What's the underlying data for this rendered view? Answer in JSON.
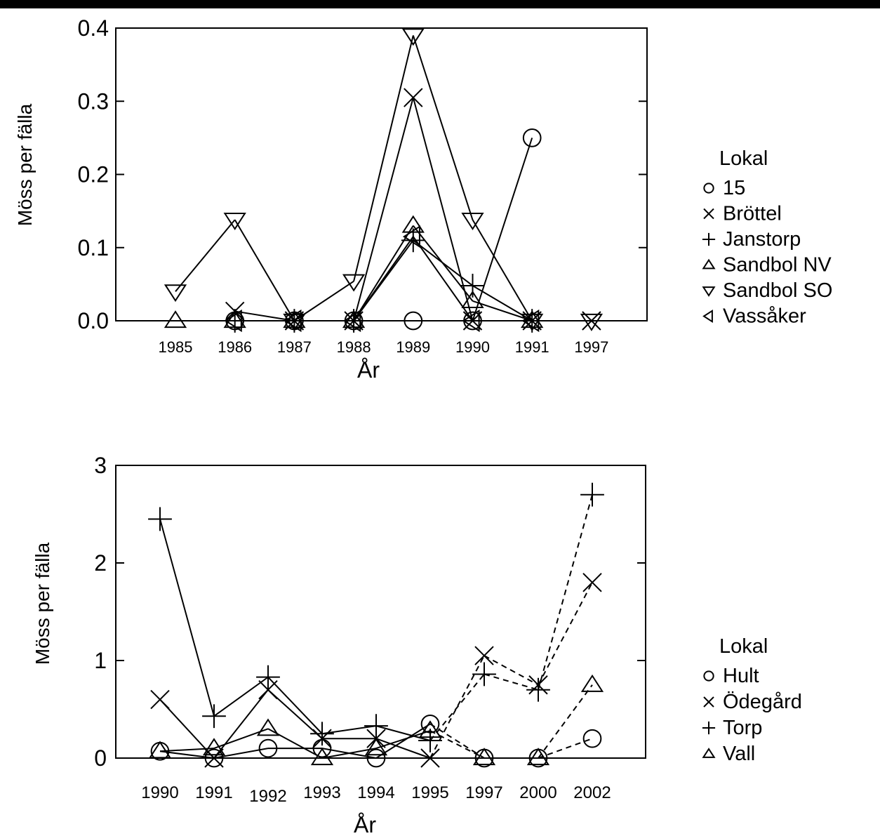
{
  "chart_data": [
    {
      "type": "line",
      "title": "",
      "xlabel": "År",
      "ylabel": "Möss per fälla",
      "ylim": [
        0,
        0.4
      ],
      "yticks": [
        "0.0",
        "0.1",
        "0.2",
        "0.3",
        "0.4"
      ],
      "categories": [
        "1985",
        "1986",
        "1987",
        "1988",
        "1989",
        "1990",
        "1991",
        "1997"
      ],
      "legend_title": "Lokal",
      "legend_placement": "right",
      "series": [
        {
          "name": "15",
          "marker": "circle",
          "values": [
            null,
            0.0,
            0.0,
            0.0,
            0.0,
            0.0,
            0.25,
            null
          ]
        },
        {
          "name": "Bröttel",
          "marker": "x",
          "values": [
            null,
            0.013,
            0.0,
            0.0,
            0.305,
            0.0,
            0.0,
            0.0
          ]
        },
        {
          "name": "Janstorp",
          "marker": "plus",
          "values": [
            null,
            0.0,
            0.0,
            0.0,
            0.11,
            0.048,
            0.0,
            null
          ]
        },
        {
          "name": "Sandbol NV",
          "marker": "triangle-up",
          "values": [
            0.0,
            0.0,
            0.0,
            0.0,
            0.13,
            0.027,
            0.0,
            null
          ]
        },
        {
          "name": "Sandbol SO",
          "marker": "triangle-down",
          "values": [
            0.04,
            0.138,
            0.0,
            0.054,
            0.39,
            0.138,
            0.0,
            0.0
          ]
        },
        {
          "name": "Vassåker",
          "marker": "triangle-left",
          "values": [
            null,
            0.0,
            0.0,
            0.0,
            0.115,
            0.0,
            0.0,
            null
          ]
        }
      ]
    },
    {
      "type": "line",
      "title": "",
      "xlabel": "År",
      "ylabel": "Möss per fälla",
      "ylim": [
        0,
        3
      ],
      "yticks": [
        "0",
        "1",
        "2",
        "3"
      ],
      "categories": [
        "1990",
        "1991",
        "1992",
        "1993",
        "1994",
        "1995",
        "1997",
        "2000",
        "2002"
      ],
      "legend_title": "Lokal",
      "legend_placement": "right",
      "dashed_from_category": "1995",
      "series": [
        {
          "name": "Hult",
          "marker": "circle",
          "values": [
            0.07,
            0.0,
            0.1,
            0.1,
            0.0,
            0.35,
            0.0,
            0.0,
            0.2
          ]
        },
        {
          "name": "Ödegård",
          "marker": "x",
          "values": [
            0.6,
            0.0,
            0.7,
            0.2,
            0.2,
            0.0,
            1.05,
            0.75,
            1.8
          ]
        },
        {
          "name": "Torp",
          "marker": "plus",
          "values": [
            2.45,
            0.43,
            0.83,
            0.25,
            0.33,
            0.18,
            0.86,
            0.7,
            2.7
          ]
        },
        {
          "name": "Vall",
          "marker": "triangle-up",
          "values": [
            0.07,
            0.1,
            0.3,
            0.0,
            0.1,
            0.28,
            0.0,
            0.0,
            0.75
          ]
        }
      ]
    }
  ]
}
